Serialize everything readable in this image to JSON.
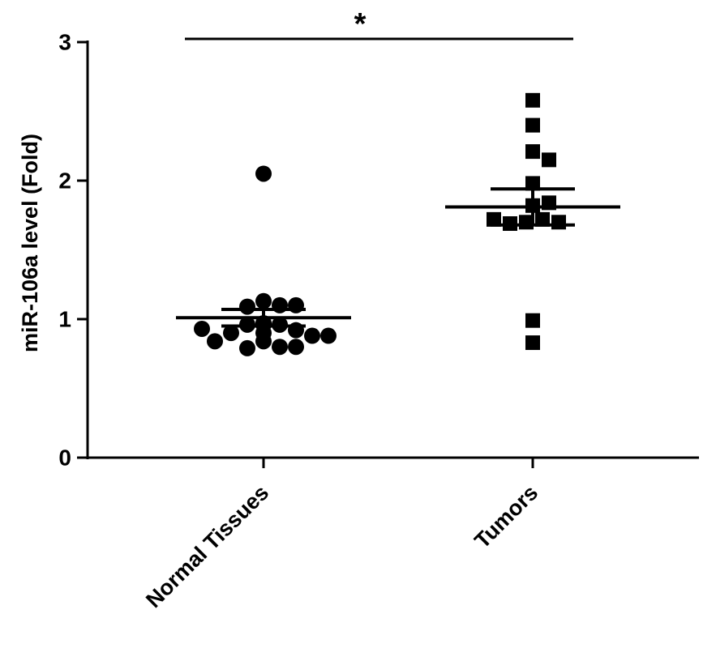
{
  "chart_data": {
    "type": "dot",
    "annotation": "*",
    "y_label": "miR-106a level (Fold)",
    "categories": [
      "Normal Tissues",
      "Tumors"
    ],
    "groups": [
      {
        "marker": "circle",
        "color": "#000000",
        "values": [
          2.05,
          1.13,
          1.1,
          1.09,
          1.1,
          0.97,
          0.96,
          0.96,
          0.92,
          0.9,
          0.88,
          0.84,
          0.8,
          0.79,
          0.8,
          0.84,
          0.88,
          0.9,
          0.93,
          0.96,
          0.97
        ],
        "mean": 1.01,
        "sem": 0.06
      },
      {
        "marker": "square",
        "color": "#000000",
        "values": [
          2.58,
          2.4,
          2.21,
          2.15,
          1.98,
          1.82,
          1.84,
          1.72,
          1.7,
          1.69,
          1.7,
          1.72,
          0.99,
          0.83
        ],
        "mean": 1.81,
        "sem": 0.13
      }
    ],
    "ylim": [
      0,
      3
    ],
    "yticks": [
      0,
      1,
      2,
      3
    ]
  }
}
